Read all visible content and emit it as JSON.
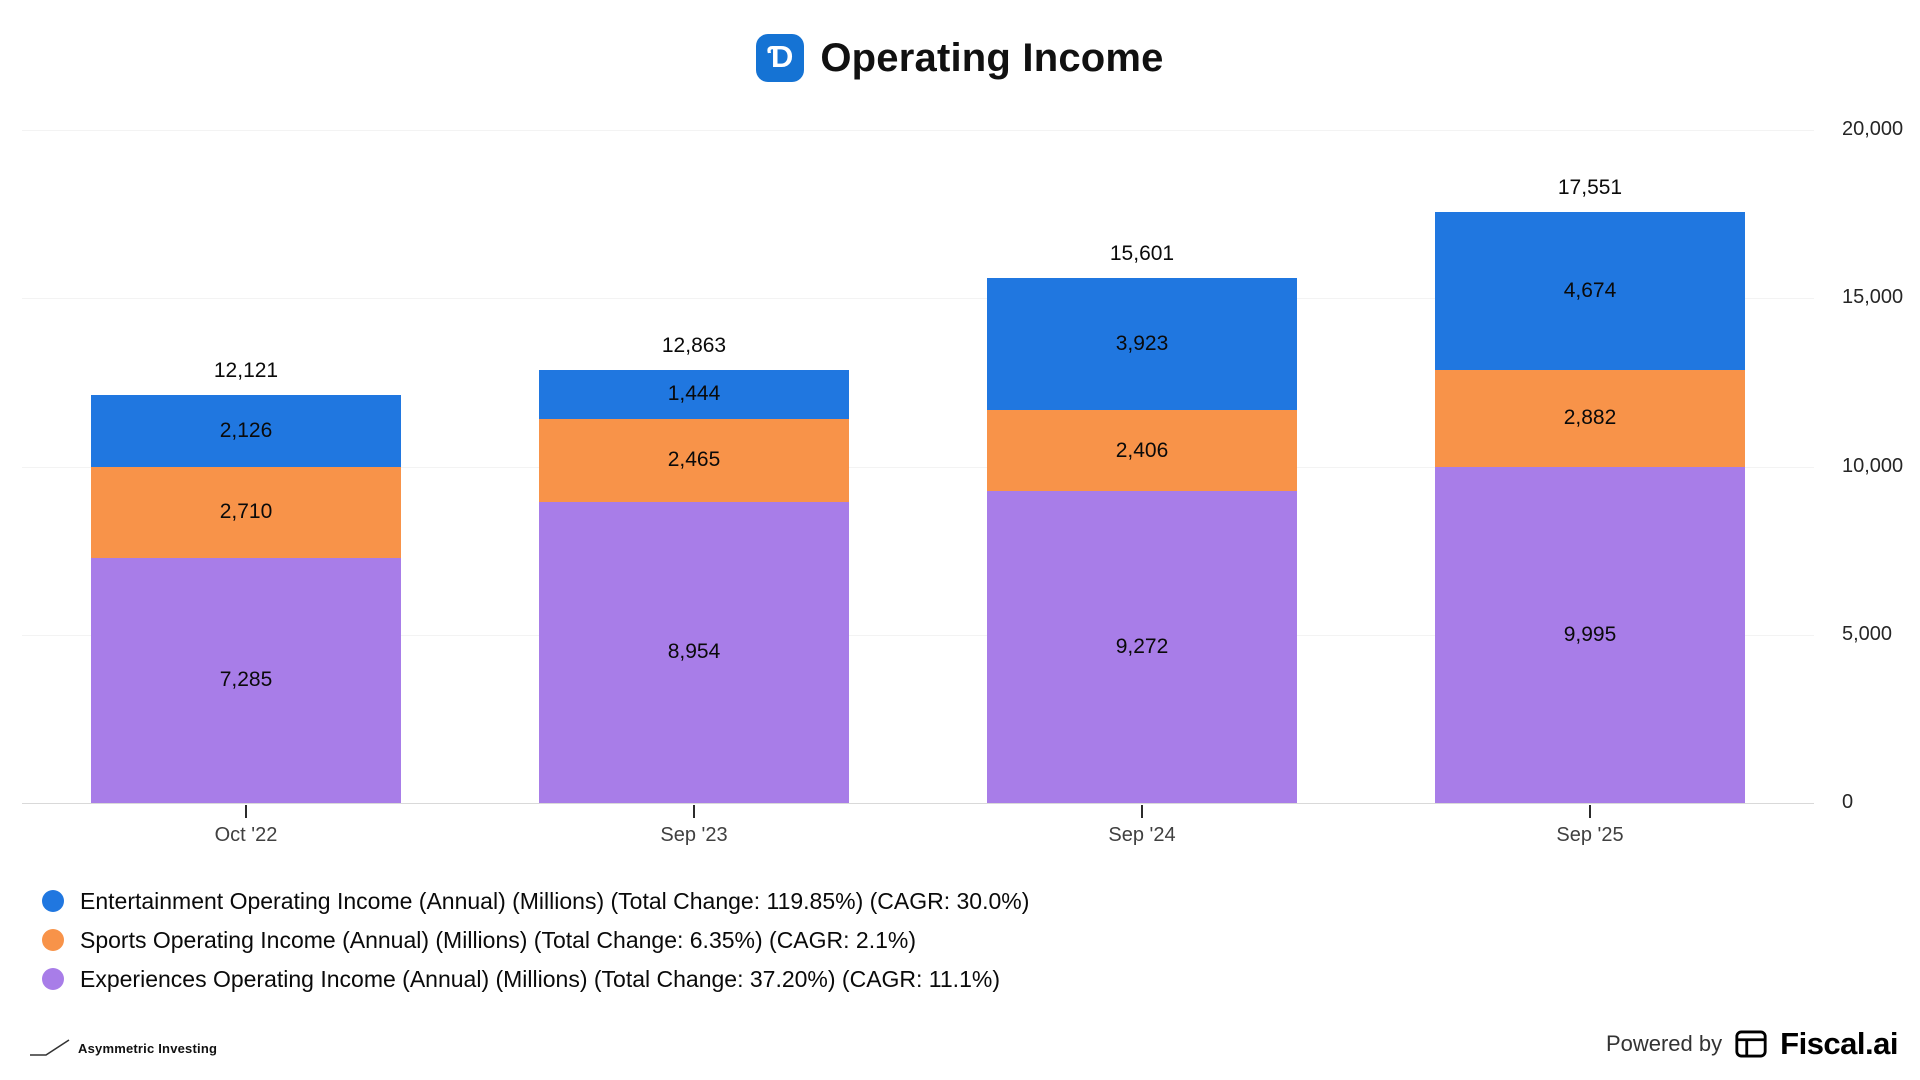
{
  "header": {
    "title": "Operating Income",
    "logo_letter": "Ɗ"
  },
  "chart_data": {
    "type": "bar",
    "stacked": true,
    "title": "Operating Income",
    "categories": [
      "Oct '22",
      "Sep '23",
      "Sep '24",
      "Sep '25"
    ],
    "series": [
      {
        "name": "Experiences Operating Income",
        "color": "#a87de8",
        "values": [
          7285,
          8954,
          9272,
          9995
        ]
      },
      {
        "name": "Sports Operating Income",
        "color": "#f89349",
        "values": [
          2710,
          2465,
          2406,
          2882
        ]
      },
      {
        "name": "Entertainment Operating Income",
        "color": "#2077e0",
        "values": [
          2126,
          1444,
          3923,
          4674
        ]
      }
    ],
    "totals": [
      12121,
      12863,
      15601,
      17551
    ],
    "y_ticks": [
      0,
      5000,
      10000,
      15000,
      20000
    ],
    "ylim": [
      0,
      20000
    ],
    "grid": true,
    "legend_position": "bottom-left",
    "legend": [
      {
        "color": "#2077e0",
        "label": "Entertainment Operating Income (Annual) (Millions) (Total Change: 119.85%) (CAGR: 30.0%)"
      },
      {
        "color": "#f89349",
        "label": "Sports Operating Income (Annual) (Millions) (Total Change: 6.35%) (CAGR: 2.1%)"
      },
      {
        "color": "#a87de8",
        "label": "Experiences Operating Income (Annual) (Millions) (Total Change: 37.20%) (CAGR: 11.1%)"
      }
    ]
  },
  "footer": {
    "brand_left": "Asymmetric Investing",
    "powered_by": "Powered by",
    "brand_right": "Fiscal.ai"
  }
}
